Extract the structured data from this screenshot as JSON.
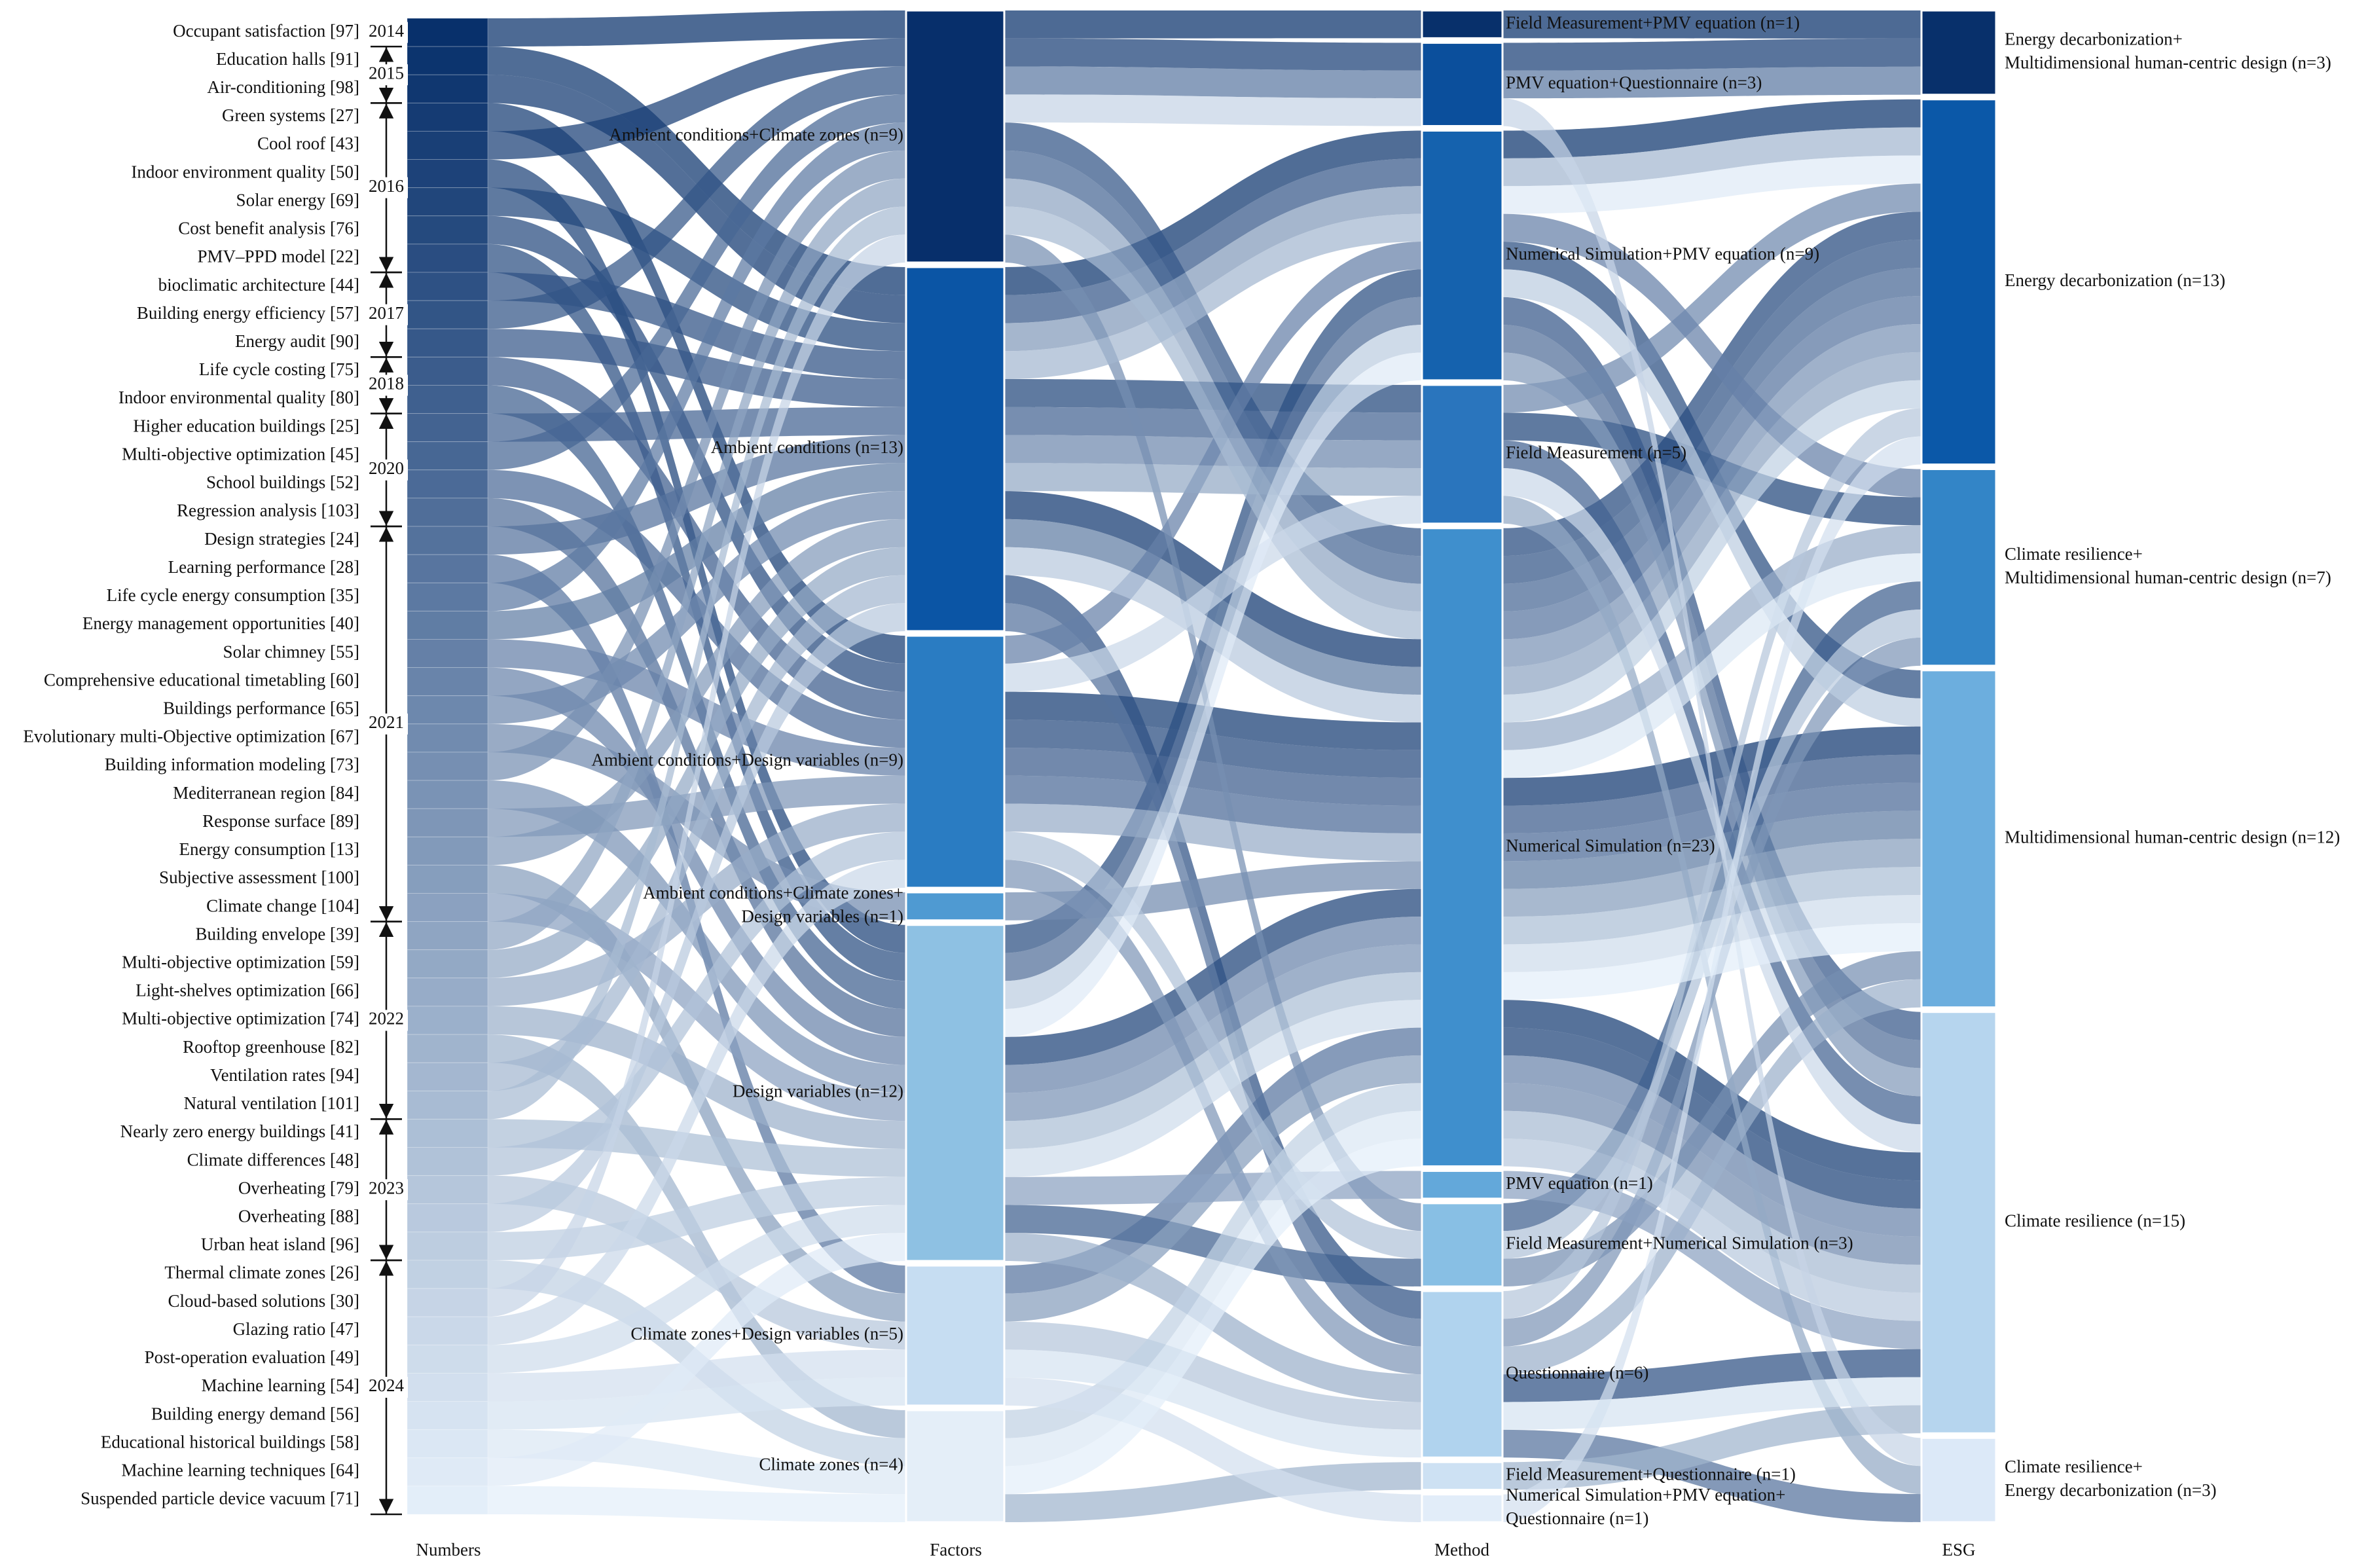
{
  "columns": [
    "Numbers",
    "Factors",
    "Method",
    "ESG"
  ],
  "paper_colors": [
    "#08306b",
    "#e3eef9"
  ],
  "papers": [
    {
      "label": "Occupant satisfaction [97]",
      "factor": 0,
      "method": 0,
      "esg": 0
    },
    {
      "label": "Education halls [91]",
      "factor": 1,
      "method": 2,
      "esg": 1
    },
    {
      "label": "Air-conditioning [98]",
      "factor": 1,
      "method": 4,
      "esg": 3
    },
    {
      "label": "Green systems [27]",
      "factor": 2,
      "method": 4,
      "esg": 4
    },
    {
      "label": "Cool roof [43]",
      "factor": 0,
      "method": 1,
      "esg": 0
    },
    {
      "label": "Indoor environment quality [50]",
      "factor": 4,
      "method": 4,
      "esg": 4
    },
    {
      "label": "Solar energy [69]",
      "factor": 1,
      "method": 3,
      "esg": 2
    },
    {
      "label": "Cost benefit analysis [76]",
      "factor": 2,
      "method": 4,
      "esg": 1
    },
    {
      "label": "PMV–PPD model [22]",
      "factor": 4,
      "method": 2,
      "esg": 3
    },
    {
      "label": "bioclimatic architecture [44]",
      "factor": 1,
      "method": 7,
      "esg": 4
    },
    {
      "label": "Building energy efficiency [57]",
      "factor": 0,
      "method": 4,
      "esg": 1
    },
    {
      "label": "Energy audit [90]",
      "factor": 1,
      "method": 2,
      "esg": 4
    },
    {
      "label": "Life cycle costing [75]",
      "factor": 2,
      "method": 4,
      "esg": 3
    },
    {
      "label": "Indoor environmental quality [80]",
      "factor": 4,
      "method": 6,
      "esg": 2
    },
    {
      "label": "Higher education buildings [25]",
      "factor": 1,
      "method": 3,
      "esg": 4
    },
    {
      "label": "Multi-objective optimization [45]",
      "factor": 0,
      "method": 4,
      "esg": 1
    },
    {
      "label": "School buildings [52]",
      "factor": 2,
      "method": 4,
      "esg": 3
    },
    {
      "label": "Regression analysis [103]",
      "factor": 4,
      "method": 2,
      "esg": 4
    },
    {
      "label": "Design strategies [24]",
      "factor": 1,
      "method": 7,
      "esg": 5
    },
    {
      "label": "Learning performance [28]",
      "factor": 5,
      "method": 4,
      "esg": 1
    },
    {
      "label": "Life cycle energy consumption [35]",
      "factor": 0,
      "method": 1,
      "esg": 0
    },
    {
      "label": "Energy management opportunities [40]",
      "factor": 1,
      "method": 4,
      "esg": 3
    },
    {
      "label": "Solar chimney [55]",
      "factor": 2,
      "method": 2,
      "esg": 2
    },
    {
      "label": "Comprehensive educational timetabling [60]",
      "factor": 4,
      "method": 4,
      "esg": 4
    },
    {
      "label": "Buildings performance [65]",
      "factor": 1,
      "method": 3,
      "esg": 1
    },
    {
      "label": "Evolutionary multi-Objective optimization [67]",
      "factor": 3,
      "method": 4,
      "esg": 4
    },
    {
      "label": "Building information modeling [73]",
      "factor": 0,
      "method": 6,
      "esg": 3
    },
    {
      "label": "Mediterranean region [84]",
      "factor": 4,
      "method": 4,
      "esg": 1
    },
    {
      "label": "Response surface [89]",
      "factor": 2,
      "method": 7,
      "esg": 2
    },
    {
      "label": "Energy consumption [13]",
      "factor": 1,
      "method": 2,
      "esg": 4
    },
    {
      "label": "Subjective assessment [100]",
      "factor": 5,
      "method": 4,
      "esg": 3
    },
    {
      "label": "Climate change [104]",
      "factor": 4,
      "method": 5,
      "esg": 4
    },
    {
      "label": "Building envelope [39]",
      "factor": 0,
      "method": 4,
      "esg": 1
    },
    {
      "label": "Multi-objective optimization [59]",
      "factor": 1,
      "method": 3,
      "esg": 5
    },
    {
      "label": "Light-shelves optimization [66]",
      "factor": 2,
      "method": 4,
      "esg": 2
    },
    {
      "label": "Multi-objective optimization [74]",
      "factor": 4,
      "method": 7,
      "esg": 3
    },
    {
      "label": "Rooftop greenhouse [82]",
      "factor": 6,
      "method": 8,
      "esg": 4
    },
    {
      "label": "Ventilation rates [94]",
      "factor": 1,
      "method": 2,
      "esg": 1
    },
    {
      "label": "Natural ventilation [101]",
      "factor": 0,
      "method": 4,
      "esg": 4
    },
    {
      "label": "Nearly zero energy buildings [41]",
      "factor": 4,
      "method": 4,
      "esg": 3
    },
    {
      "label": "Climate differences [48]",
      "factor": 2,
      "method": 6,
      "esg": 2
    },
    {
      "label": "Overheating [79]",
      "factor": 5,
      "method": 7,
      "esg": 1
    },
    {
      "label": "Overheating [88]",
      "factor": 1,
      "method": 4,
      "esg": 4
    },
    {
      "label": "Urban heat island [96]",
      "factor": 4,
      "method": 2,
      "esg": 3
    },
    {
      "label": "Thermal climate zones [26]",
      "factor": 6,
      "method": 4,
      "esg": 1
    },
    {
      "label": "Cloud-based solutions [30]",
      "factor": 0,
      "method": 1,
      "esg": 5
    },
    {
      "label": "Glazing ratio [47]",
      "factor": 2,
      "method": 3,
      "esg": 4
    },
    {
      "label": "Post-operation evaluation [49]",
      "factor": 4,
      "method": 4,
      "esg": 3
    },
    {
      "label": "Machine learning [54]",
      "factor": 5,
      "method": 9,
      "esg": 1
    },
    {
      "label": "Building energy demand [56]",
      "factor": 5,
      "method": 7,
      "esg": 4
    },
    {
      "label": "Educational historical buildings [58]",
      "factor": 6,
      "method": 4,
      "esg": 2
    },
    {
      "label": "Machine learning techniques [64]",
      "factor": 4,
      "method": 2,
      "esg": 1
    },
    {
      "label": "Suspended particle device vacuum [71]",
      "factor": 6,
      "method": 4,
      "esg": 3
    }
  ],
  "years": [
    {
      "label": "2014",
      "from": 0,
      "to": 0
    },
    {
      "label": "2015",
      "from": 1,
      "to": 2
    },
    {
      "label": "2016",
      "from": 3,
      "to": 8
    },
    {
      "label": "2017",
      "from": 9,
      "to": 11
    },
    {
      "label": "2018",
      "from": 12,
      "to": 13
    },
    {
      "label": "2020",
      "from": 14,
      "to": 17
    },
    {
      "label": "2021",
      "from": 18,
      "to": 31
    },
    {
      "label": "2022",
      "from": 32,
      "to": 38
    },
    {
      "label": "2023",
      "from": 39,
      "to": 43
    },
    {
      "label": "2024",
      "from": 44,
      "to": 52
    }
  ],
  "factors": [
    {
      "lines": [
        "Ambient conditions+Climate zones (n=9)"
      ],
      "color": "#072f6b"
    },
    {
      "lines": [
        "Ambient conditions (n=13)"
      ],
      "color": "#0b55a5"
    },
    {
      "lines": [
        "Ambient conditions+Design variables (n=9)"
      ],
      "color": "#2a7cc2"
    },
    {
      "lines": [
        "Ambient conditions+Climate zones+",
        "Design variables (n=1)"
      ],
      "color": "#4f9ad2"
    },
    {
      "lines": [
        "Design variables (n=12)"
      ],
      "color": "#8ec1e3"
    },
    {
      "lines": [
        "Climate zones+Design variables (n=5)"
      ],
      "color": "#c6ddf2"
    },
    {
      "lines": [
        "Climate zones (n=4)"
      ],
      "color": "#e4eef8"
    }
  ],
  "methods": [
    {
      "lines": [
        "Field Measurement+PMV equation (n=1)"
      ],
      "color": "#08306b"
    },
    {
      "lines": [
        "PMV equation+Questionnaire  (n=3)"
      ],
      "color": "#0b4f9c"
    },
    {
      "lines": [
        "Numerical Simulation+PMV equation (n=9)"
      ],
      "color": "#1562ae"
    },
    {
      "lines": [
        "Field Measurement (n=5)"
      ],
      "color": "#2a75bd"
    },
    {
      "lines": [
        "Numerical Simulation (n=23)"
      ],
      "color": "#3f8fcd"
    },
    {
      "lines": [
        "PMV equation (n=1)"
      ],
      "color": "#63a8da"
    },
    {
      "lines": [
        "Field Measurement+Numerical Simulation (n=3)"
      ],
      "color": "#88bfe4"
    },
    {
      "lines": [
        "Questionnaire  (n=6)"
      ],
      "color": "#b0d3ee"
    },
    {
      "lines": [
        "Field Measurement+Questionnaire  (n=1)"
      ],
      "color": "#cde1f3"
    },
    {
      "lines": [
        "Numerical Simulation+PMV equation+",
        "Questionnaire  (n=1)"
      ],
      "color": "#e2edf9"
    }
  ],
  "esg": [
    {
      "lines": [
        "Energy decarbonization+",
        "Multidimensional human-centric design (n=3)"
      ],
      "color": "#08306b"
    },
    {
      "lines": [
        "Energy decarbonization (n=13)"
      ],
      "color": "#0b58a8"
    },
    {
      "lines": [
        "Climate resilience+",
        "Multidimensional human-centric design (n=7)"
      ],
      "color": "#3385c7"
    },
    {
      "lines": [
        "Multidimensional human-centric design (n=12)"
      ],
      "color": "#6caede"
    },
    {
      "lines": [
        "Climate resilience (n=15)"
      ],
      "color": "#b6d5ee"
    },
    {
      "lines": [
        "Climate resilience+",
        "Energy decarbonization (n=3)"
      ],
      "color": "#dce9f8"
    }
  ]
}
